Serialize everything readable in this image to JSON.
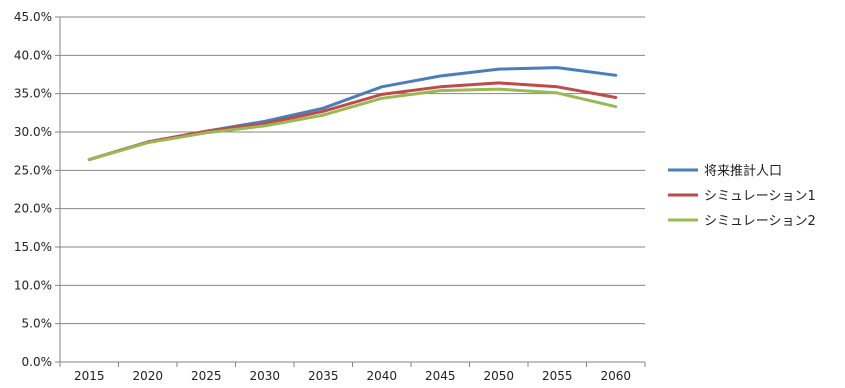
{
  "chart_data": {
    "type": "line",
    "title": "",
    "xlabel": "",
    "ylabel": "",
    "categories": [
      "2015",
      "2020",
      "2025",
      "2030",
      "2035",
      "2040",
      "2045",
      "2050",
      "2055",
      "2060"
    ],
    "ylim": [
      0,
      45
    ],
    "yticks": [
      0,
      5,
      10,
      15,
      20,
      25,
      30,
      35,
      40,
      45
    ],
    "ytick_labels": [
      "0.0%",
      "5.0%",
      "10.0%",
      "15.0%",
      "20.0%",
      "25.0%",
      "30.0%",
      "35.0%",
      "40.0%",
      "45.0%"
    ],
    "grid": "horizontal",
    "legend_position": "right",
    "series": [
      {
        "name": "将来推計人口",
        "color": "#4a7ebb",
        "values": [
          26.4,
          28.7,
          30.1,
          31.4,
          33.1,
          35.9,
          37.3,
          38.2,
          38.4,
          37.4
        ]
      },
      {
        "name": "シミュレーション1",
        "color": "#be4b48",
        "values": [
          26.4,
          28.7,
          30.1,
          31.1,
          32.7,
          34.9,
          35.9,
          36.4,
          35.9,
          34.5
        ]
      },
      {
        "name": "シミュレーション2",
        "color": "#98b954",
        "values": [
          26.4,
          28.6,
          29.9,
          30.8,
          32.2,
          34.4,
          35.4,
          35.6,
          35.1,
          33.3
        ]
      }
    ]
  }
}
